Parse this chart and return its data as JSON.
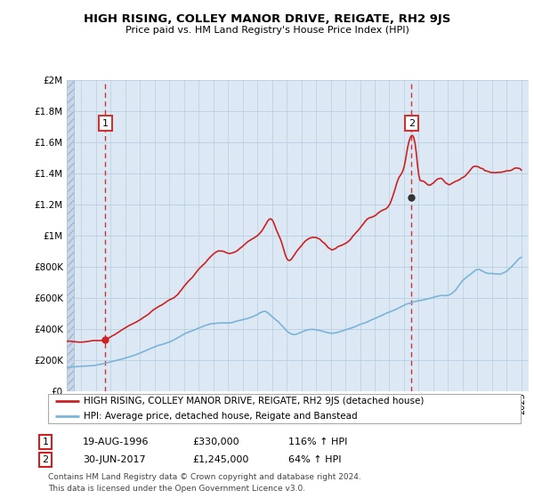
{
  "title": "HIGH RISING, COLLEY MANOR DRIVE, REIGATE, RH2 9JS",
  "subtitle": "Price paid vs. HM Land Registry's House Price Index (HPI)",
  "ylim": [
    0,
    2000000
  ],
  "yticks": [
    0,
    200000,
    400000,
    600000,
    800000,
    1000000,
    1200000,
    1400000,
    1600000,
    1800000,
    2000000
  ],
  "ytick_labels": [
    "£0",
    "£200K",
    "£400K",
    "£600K",
    "£800K",
    "£1M",
    "£1.2M",
    "£1.4M",
    "£1.6M",
    "£1.8M",
    "£2M"
  ],
  "xmin": 1994.0,
  "xmax": 2025.5,
  "hpi_color": "#7ab4d8",
  "price_color": "#cc2222",
  "bg_chart_color": "#dce9f5",
  "bg_hatch_color": "#c8d8e8",
  "marker1_x": 1996.63,
  "marker1_y": 330000,
  "marker2_x": 2017.5,
  "marker2_y": 1245000,
  "annotation1_label": "1",
  "annotation2_label": "2",
  "dashed_line_color": "#cc3333",
  "grid_color": "#b8cfe0",
  "legend_line1": "HIGH RISING, COLLEY MANOR DRIVE, REIGATE, RH2 9JS (detached house)",
  "legend_line2": "HPI: Average price, detached house, Reigate and Banstead",
  "table_row1": [
    "1",
    "19-AUG-1996",
    "£330,000",
    "116% ↑ HPI"
  ],
  "table_row2": [
    "2",
    "30-JUN-2017",
    "£1,245,000",
    "64% ↑ HPI"
  ],
  "footnote": "Contains HM Land Registry data © Crown copyright and database right 2024.\nThis data is licensed under the Open Government Licence v3.0."
}
